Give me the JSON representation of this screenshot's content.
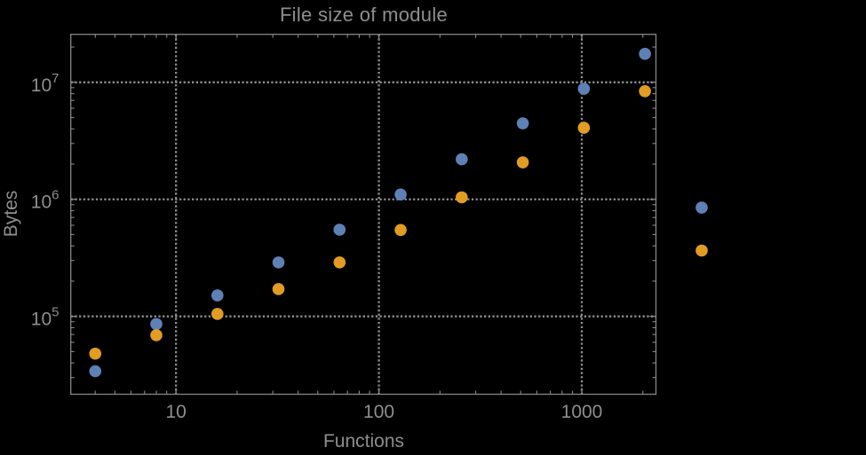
{
  "title": "File size of module",
  "colors": {
    "background": "#000000",
    "frame": "#868686",
    "gridline": "#8e8e8e",
    "text": "#8e8e8e",
    "series_blue": "#5e81b5",
    "series_orange": "#e19c24"
  },
  "chart_data": {
    "type": "scatter",
    "title": "File size of module",
    "xlabel": "Functions",
    "ylabel": "Bytes",
    "x_scale": "log",
    "y_scale": "log",
    "xlim": [
      3.03,
      2320
    ],
    "ylim": [
      21600,
      25700000
    ],
    "grid": "dotted",
    "legend": "none",
    "x_major_ticks": [
      10,
      100,
      1000
    ],
    "x_tick_labels": [
      "10",
      "100",
      "1000"
    ],
    "y_major_ticks": [
      100000,
      1000000,
      10000000
    ],
    "y_tick_labels": [
      {
        "base": "10",
        "exp": "5"
      },
      {
        "base": "10",
        "exp": "6"
      },
      {
        "base": "10",
        "exp": "7"
      }
    ],
    "note": "last pair of points (x≈3900) lies outside the right edge of the plot frame",
    "series": [
      {
        "name": "series-blue",
        "color": "#5e81b5",
        "x": [
          4,
          8,
          16,
          32,
          64,
          128,
          256,
          512,
          1024,
          2048,
          3900
        ],
        "y": [
          34000,
          86000,
          151000,
          289000,
          550000,
          1100000,
          2200000,
          4460000,
          8800000,
          17500000,
          850000
        ]
      },
      {
        "name": "series-orange",
        "color": "#e19c24",
        "x": [
          4,
          8,
          16,
          32,
          64,
          128,
          256,
          512,
          1024,
          2048,
          3900
        ],
        "y": [
          48000,
          69000,
          105000,
          171000,
          289000,
          547000,
          1040000,
          2070000,
          4090000,
          8400000,
          365000
        ]
      }
    ]
  }
}
